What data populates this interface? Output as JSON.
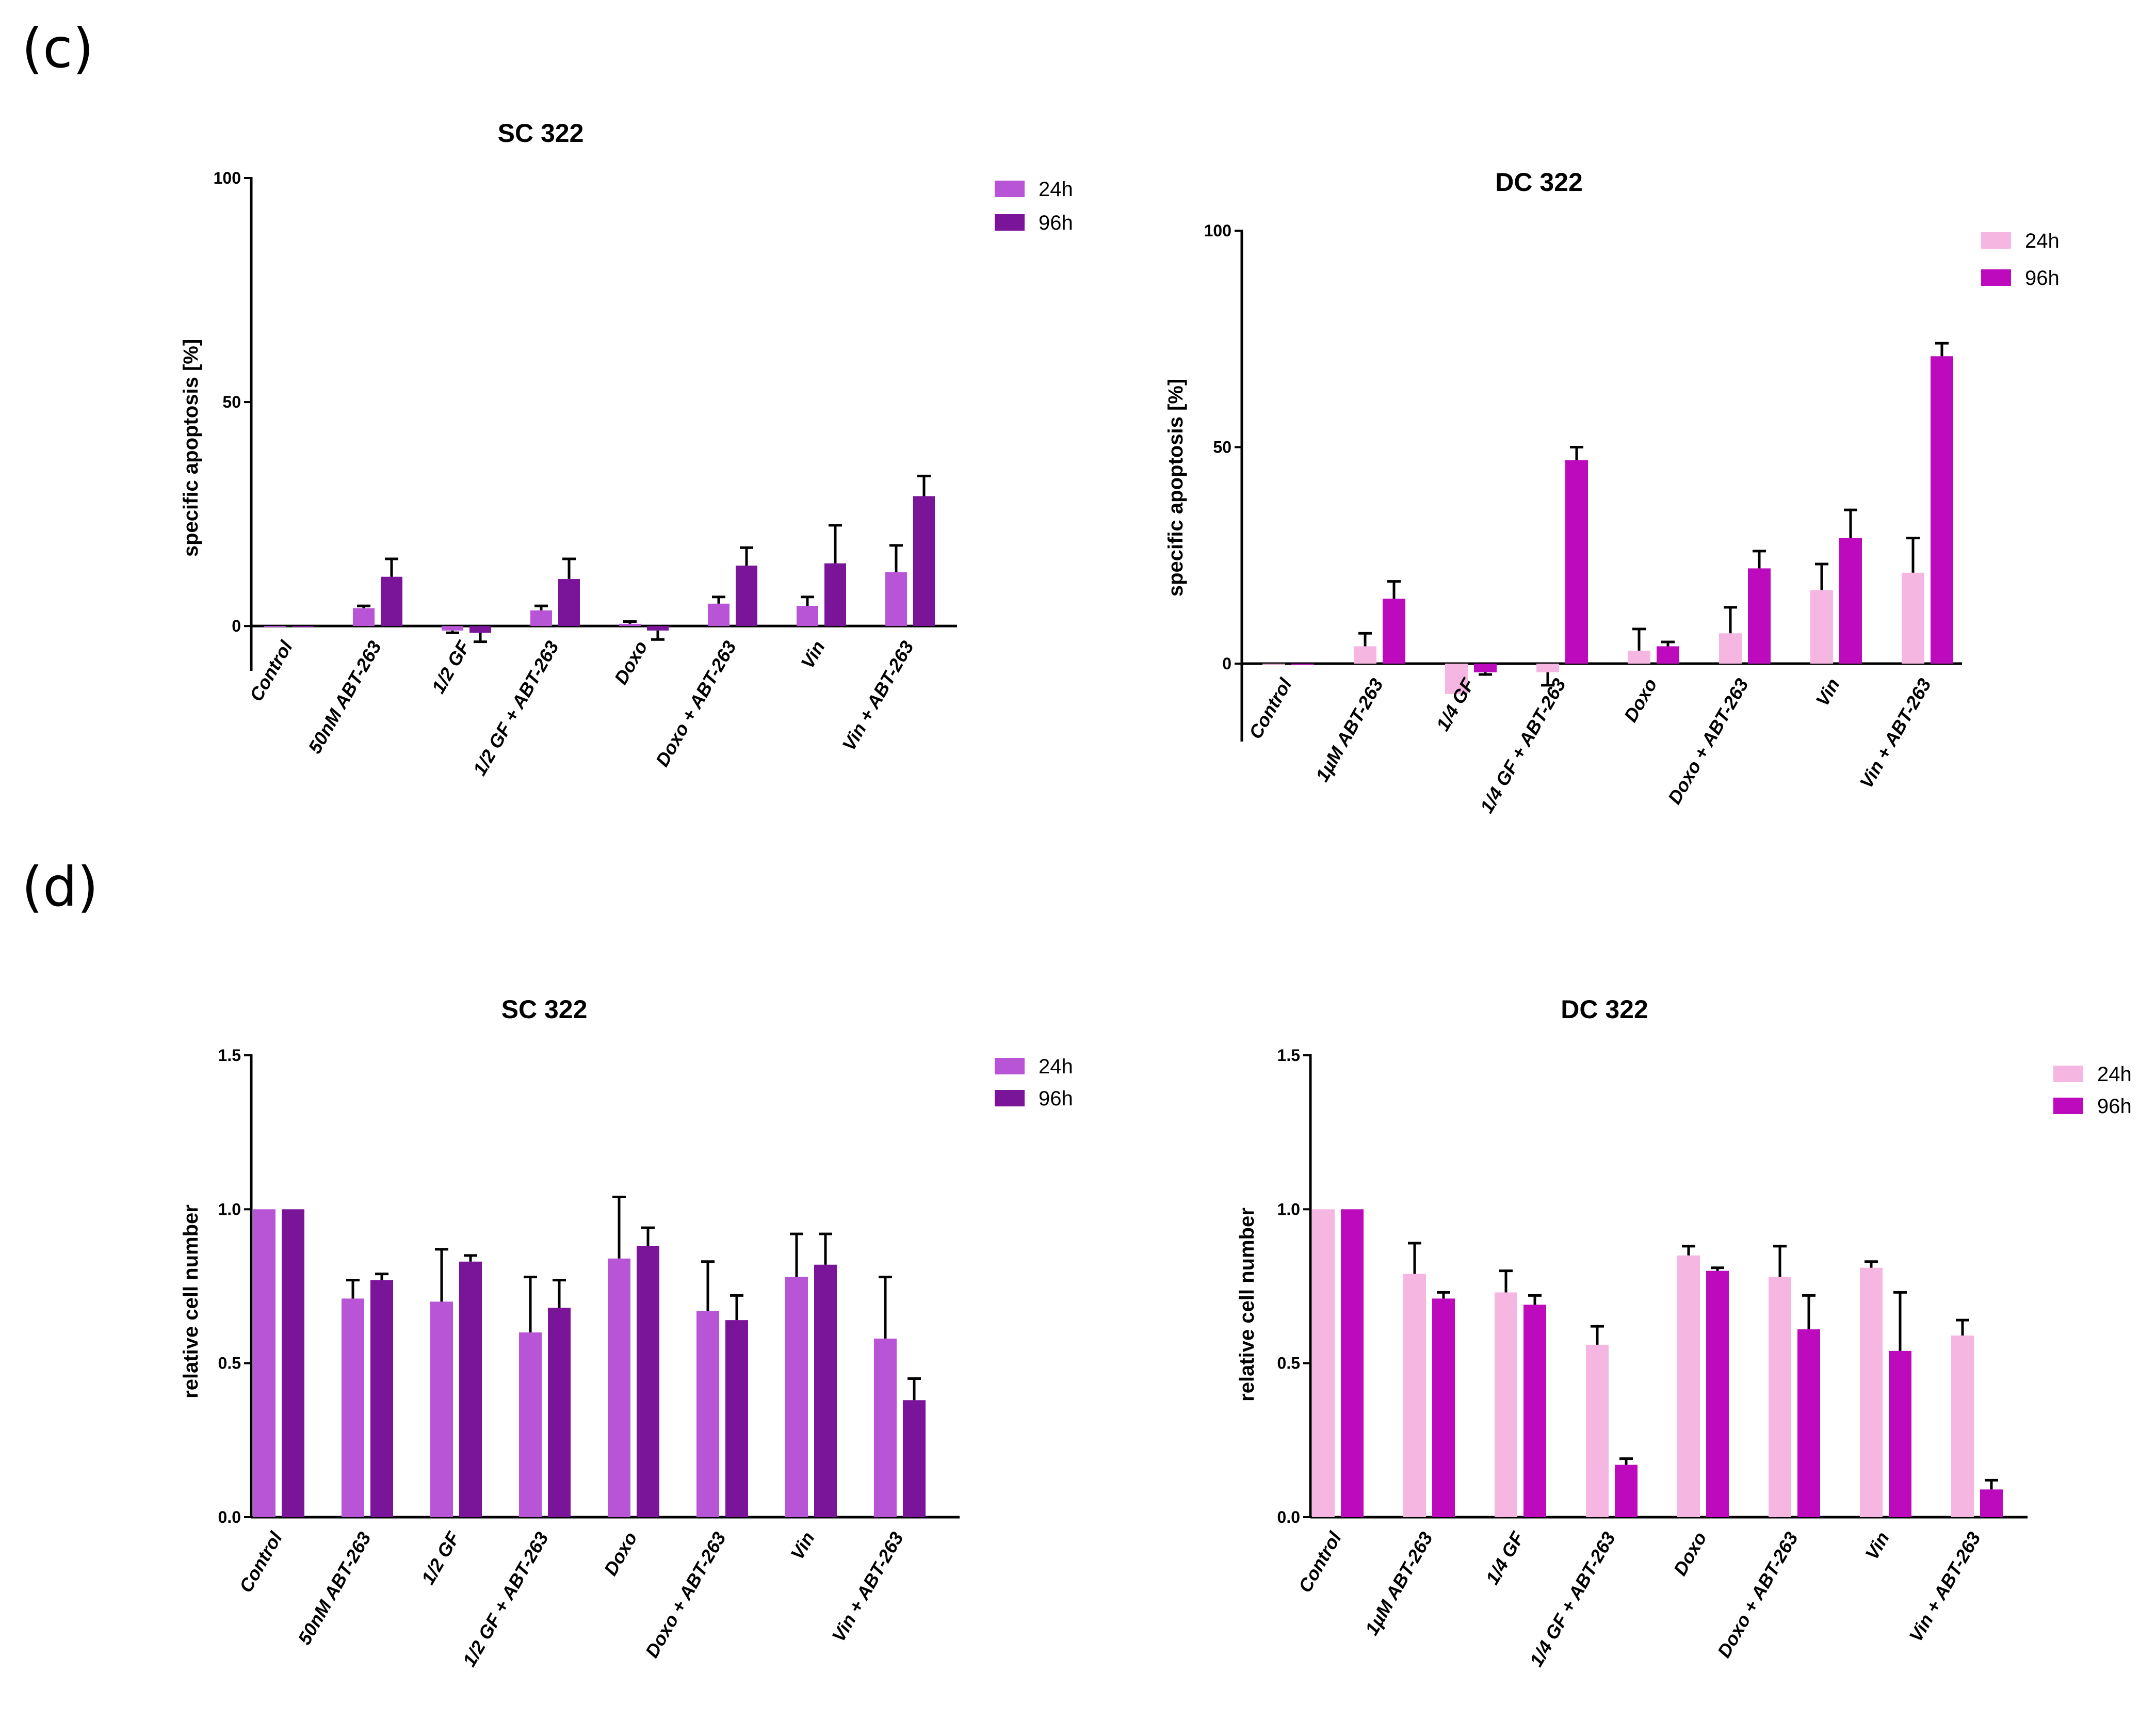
{
  "panel_labels": [
    "(c)",
    "(d)"
  ],
  "colors": {
    "sc_24h": "#b855d6",
    "sc_96h": "#7a159a",
    "dc_24h": "#f5b6e1",
    "dc_96h": "#bd0abd",
    "axis": "#000000"
  },
  "chart_data": [
    {
      "id": "c-sc",
      "type": "bar",
      "title": "SC 322",
      "ylabel": "specific apoptosis [%]",
      "xlabel": "",
      "ylim": [
        -10,
        100
      ],
      "yticks": [
        "0",
        "50",
        "100"
      ],
      "categories": [
        "Control",
        "50nM ABT-263",
        "1/2 GF",
        "1/2 GF + ABT-263",
        "Doxo",
        "Doxo + ABT-263",
        "Vin",
        "Vin + ABT-263"
      ],
      "series": [
        {
          "name": "24h",
          "values": [
            0,
            4,
            -1,
            3.5,
            0.5,
            5,
            4.5,
            12
          ],
          "errors": [
            0,
            0.5,
            0.5,
            1,
            0.5,
            1.5,
            2,
            6
          ]
        },
        {
          "name": "96h",
          "values": [
            0,
            11,
            -1.5,
            10.5,
            -1,
            13.5,
            14,
            29
          ],
          "errors": [
            0,
            4,
            2,
            4.5,
            2,
            4,
            8.5,
            4.5
          ]
        }
      ],
      "legend": "top-right",
      "grid": false
    },
    {
      "id": "c-dc",
      "type": "bar",
      "title": "DC 322",
      "ylabel": "specific apoptosis [%]",
      "xlabel": "",
      "ylim": [
        -18,
        100
      ],
      "yticks": [
        "0",
        "50",
        "100"
      ],
      "categories": [
        "Control",
        "1µM ABT-263",
        "1/4 GF",
        "1/4 GF + ABT-263",
        "Doxo",
        "Doxo + ABT-263",
        "Vin",
        "Vin + ABT-263"
      ],
      "series": [
        {
          "name": "24h",
          "values": [
            0,
            4,
            -7,
            -2,
            3,
            7,
            17,
            21
          ],
          "errors": [
            0,
            3,
            0,
            3,
            5,
            6,
            6,
            8
          ]
        },
        {
          "name": "96h",
          "values": [
            0,
            15,
            -2,
            47,
            4,
            22,
            29,
            71
          ],
          "errors": [
            0,
            4,
            0.5,
            3,
            1,
            4,
            6.5,
            3
          ]
        }
      ],
      "legend": "top-right",
      "grid": false
    },
    {
      "id": "d-sc",
      "type": "bar",
      "title": "SC 322",
      "ylabel": "relative cell number",
      "xlabel": "",
      "ylim": [
        0,
        1.5
      ],
      "yticks": [
        "0.0",
        "0.5",
        "1.0",
        "1.5"
      ],
      "categories": [
        "Control",
        "50nM ABT-263",
        "1/2 GF",
        "1/2 GF + ABT-263",
        "Doxo",
        "Doxo + ABT-263",
        "Vin",
        "Vin + ABT-263"
      ],
      "series": [
        {
          "name": "24h",
          "values": [
            1.0,
            0.71,
            0.7,
            0.6,
            0.84,
            0.67,
            0.78,
            0.58
          ],
          "errors": [
            0,
            0.06,
            0.17,
            0.18,
            0.2,
            0.16,
            0.14,
            0.2
          ]
        },
        {
          "name": "96h",
          "values": [
            1.0,
            0.77,
            0.83,
            0.68,
            0.88,
            0.64,
            0.82,
            0.38
          ],
          "errors": [
            0,
            0.02,
            0.02,
            0.09,
            0.06,
            0.08,
            0.1,
            0.07
          ]
        }
      ],
      "legend": "top-right",
      "grid": false
    },
    {
      "id": "d-dc",
      "type": "bar",
      "title": "DC 322",
      "ylabel": "relative cell number",
      "xlabel": "",
      "ylim": [
        0,
        1.5
      ],
      "yticks": [
        "0.0",
        "0.5",
        "1.0",
        "1.5"
      ],
      "categories": [
        "Control",
        "1µM ABT-263",
        "1/4 GF",
        "1/4 GF + ABT-263",
        "Doxo",
        "Doxo + ABT-263",
        "Vin",
        "Vin + ABT-263"
      ],
      "series": [
        {
          "name": "24h",
          "values": [
            1.0,
            0.79,
            0.73,
            0.56,
            0.85,
            0.78,
            0.81,
            0.59
          ],
          "errors": [
            0,
            0.1,
            0.07,
            0.06,
            0.03,
            0.1,
            0.02,
            0.05
          ]
        },
        {
          "name": "96h",
          "values": [
            1.0,
            0.71,
            0.69,
            0.17,
            0.8,
            0.61,
            0.54,
            0.09
          ],
          "errors": [
            0,
            0.02,
            0.03,
            0.02,
            0.01,
            0.11,
            0.19,
            0.03
          ]
        }
      ],
      "legend": "top-right",
      "grid": false
    }
  ]
}
